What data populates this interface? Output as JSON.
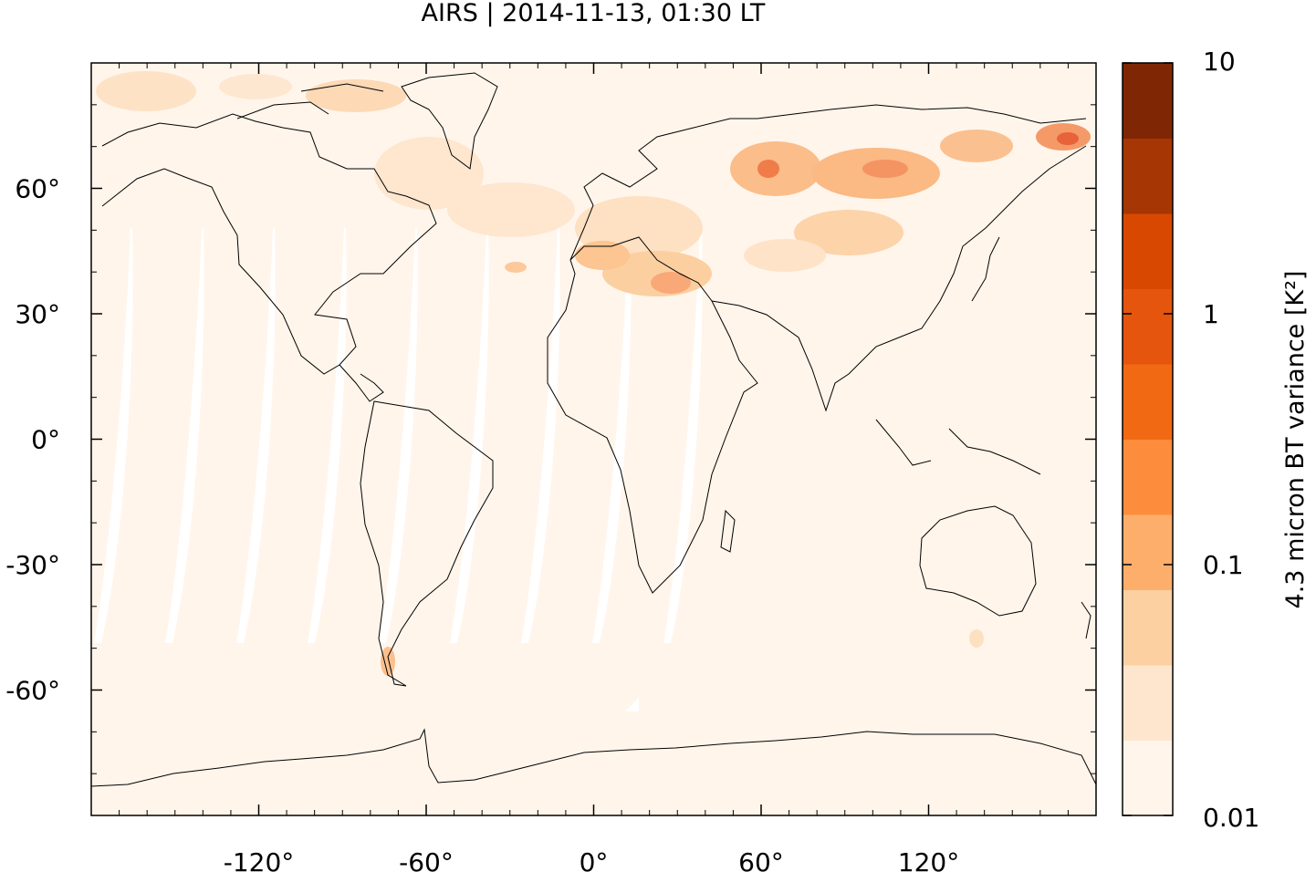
{
  "title": "AIRS | 2014-11-13, 01:30 LT",
  "map": {
    "projection": "equirectangular",
    "lon_range": [
      -180,
      180
    ],
    "lat_range": [
      -90,
      90
    ],
    "xticks": [
      {
        "value": -120,
        "label": "-120°"
      },
      {
        "value": -60,
        "label": "-60°"
      },
      {
        "value": 0,
        "label": "0°"
      },
      {
        "value": 60,
        "label": "60°"
      },
      {
        "value": 120,
        "label": "120°"
      }
    ],
    "yticks": [
      {
        "value": 60,
        "label": "60°"
      },
      {
        "value": 30,
        "label": "30°"
      },
      {
        "value": 0,
        "label": "0°"
      },
      {
        "value": -30,
        "label": "-30°"
      },
      {
        "value": -60,
        "label": "-60°"
      }
    ],
    "background_color": "#fff5eb",
    "coastline_color": "#000000",
    "orbit_gap_color": "#ffffff"
  },
  "colorbar": {
    "label": "4.3 micron BT variance [K²]",
    "scale": "log",
    "range": [
      0.01,
      10
    ],
    "ticks": [
      {
        "value": 10,
        "label": "10"
      },
      {
        "value": 1,
        "label": "1"
      },
      {
        "value": 0.1,
        "label": "0.1"
      },
      {
        "value": 0.01,
        "label": "0.01"
      }
    ],
    "colors": [
      "#fff5eb",
      "#fee6ce",
      "#fdd0a2",
      "#fdae6b",
      "#fd8d3c",
      "#f16913",
      "#e6550d",
      "#d94801",
      "#a63603",
      "#7f2704"
    ]
  }
}
